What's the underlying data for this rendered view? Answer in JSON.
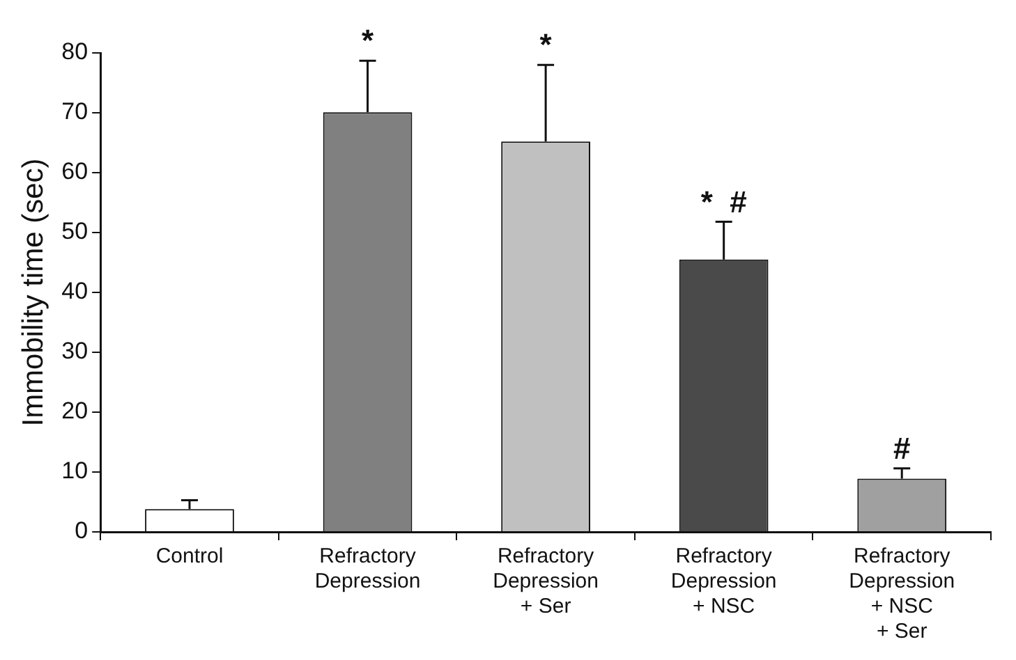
{
  "chart_data": {
    "type": "bar",
    "ylabel": "Immobility time (sec)",
    "categories": [
      "Control",
      "Refractory Depression",
      "Refractory Depression + Ser",
      "Refractory Depression + NSC",
      "Refractory Depression + NSC + Ser"
    ],
    "values": [
      3.8,
      70.1,
      65.2,
      45.5,
      8.9
    ],
    "errors": [
      [
        3.8,
        5.3
      ],
      [
        70.1,
        78.7
      ],
      [
        65.2,
        78.0
      ],
      [
        45.5,
        51.8
      ],
      [
        8.9,
        10.6
      ]
    ],
    "colors": [
      "#ffffff",
      "#808080",
      "#c0c0c0",
      "#4a4a4a",
      "#a0a0a0"
    ],
    "ylim": [
      0,
      80
    ],
    "yticks": [
      0,
      10,
      20,
      30,
      40,
      50,
      60,
      70,
      80
    ],
    "grid": false,
    "legend": false,
    "annotations": [
      {
        "text": "*",
        "x": "Refractory Depression",
        "y": 78.7
      },
      {
        "text": "*",
        "x": "Refractory Depression + Ser",
        "y": 78.0
      },
      {
        "text": "*  #",
        "x": "Refractory Depression + NSC",
        "y": 51.8
      },
      {
        "text": "#",
        "x": "Refractory Depression + NSC + Ser",
        "y": 10.6
      }
    ]
  }
}
